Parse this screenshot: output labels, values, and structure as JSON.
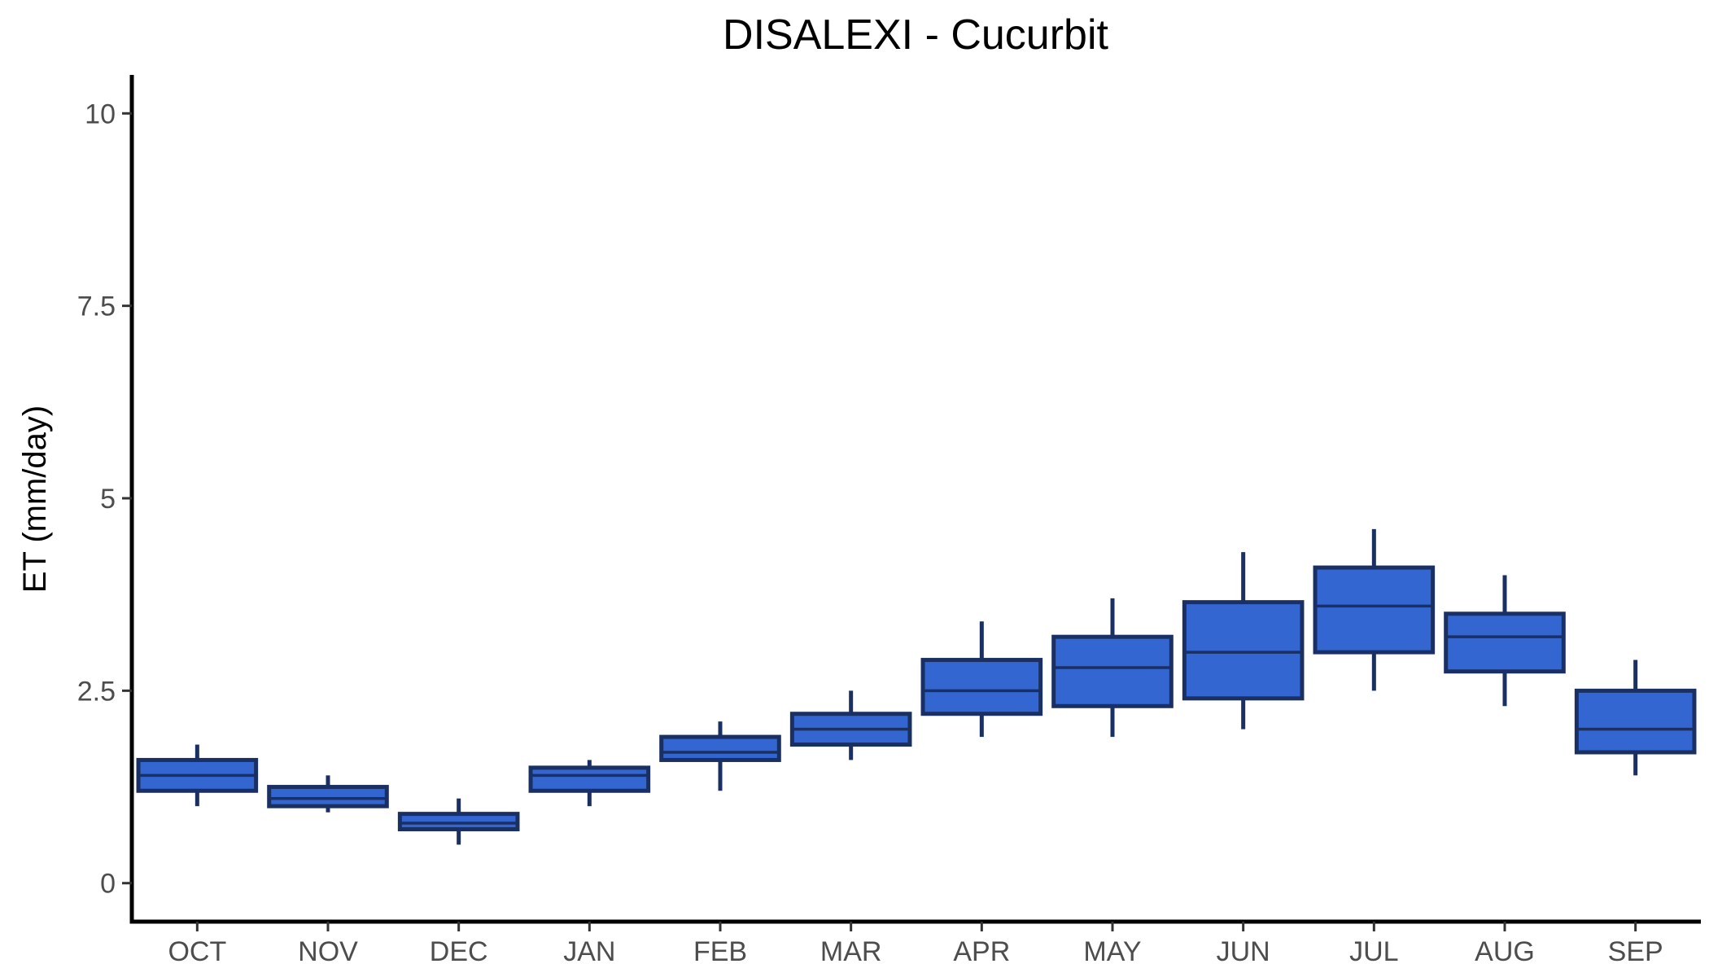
{
  "chart_data": {
    "type": "boxplot",
    "title": "DISALEXI - Cucurbit",
    "xlabel": "",
    "ylabel": "ET (mm/day)",
    "ylim": [
      -0.5,
      10.5
    ],
    "yticks": [
      0,
      2.5,
      5,
      7.5,
      10
    ],
    "ytick_labels": [
      "0",
      "2.5",
      "5",
      "7.5",
      "10"
    ],
    "grid": false,
    "legend": "none",
    "colors": {
      "box_fill": "#3366d1",
      "box_line": "#1a3063",
      "axis": "#000000",
      "tick_text": "#4d4d4d"
    },
    "categories": [
      "OCT",
      "NOV",
      "DEC",
      "JAN",
      "FEB",
      "MAR",
      "APR",
      "MAY",
      "JUN",
      "JUL",
      "AUG",
      "SEP"
    ],
    "boxes": [
      {
        "min": 1.0,
        "q1": 1.2,
        "median": 1.4,
        "q3": 1.6,
        "max": 1.8
      },
      {
        "min": 0.92,
        "q1": 1.0,
        "median": 1.1,
        "q3": 1.25,
        "max": 1.4
      },
      {
        "min": 0.5,
        "q1": 0.7,
        "median": 0.78,
        "q3": 0.9,
        "max": 1.1
      },
      {
        "min": 1.0,
        "q1": 1.2,
        "median": 1.4,
        "q3": 1.5,
        "max": 1.6
      },
      {
        "min": 1.2,
        "q1": 1.6,
        "median": 1.7,
        "q3": 1.9,
        "max": 2.1
      },
      {
        "min": 1.6,
        "q1": 1.8,
        "median": 2.0,
        "q3": 2.2,
        "max": 2.5
      },
      {
        "min": 1.9,
        "q1": 2.2,
        "median": 2.5,
        "q3": 2.9,
        "max": 3.4
      },
      {
        "min": 1.9,
        "q1": 2.3,
        "median": 2.8,
        "q3": 3.2,
        "max": 3.7
      },
      {
        "min": 2.0,
        "q1": 2.4,
        "median": 3.0,
        "q3": 3.65,
        "max": 4.3
      },
      {
        "min": 2.5,
        "q1": 3.0,
        "median": 3.6,
        "q3": 4.1,
        "max": 4.6
      },
      {
        "min": 2.3,
        "q1": 2.75,
        "median": 3.2,
        "q3": 3.5,
        "max": 4.0
      },
      {
        "min": 1.4,
        "q1": 1.7,
        "median": 2.0,
        "q3": 2.5,
        "max": 2.9
      }
    ]
  }
}
